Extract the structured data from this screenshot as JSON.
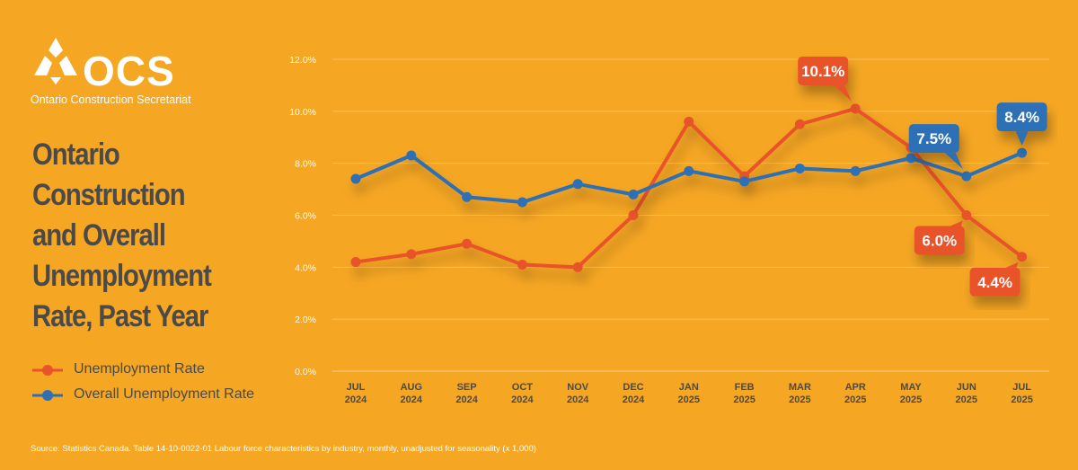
{
  "brand": {
    "logo_text": "OCS",
    "logo_subtitle": "Ontario Construction Secretariat"
  },
  "title_lines": [
    "Ontario",
    "Construction",
    "and Overall",
    "Unemployment",
    "Rate, Past Year"
  ],
  "source": "Source: Statistics Canada. Table 14-10-0022-01  Labour force characteristics by industry, monthly, unadjusted for seasonality (x 1,000)",
  "colors": {
    "background": "#F5A623",
    "construction": "#E9532B",
    "overall": "#2E6FB5",
    "title": "#4a4a4a",
    "grid": "#F8C060"
  },
  "chart_data": {
    "type": "line",
    "title": "Ontario Construction and Overall Unemployment Rate, Past Year",
    "xlabel": "",
    "ylabel": "",
    "ylim": [
      0,
      12
    ],
    "yticks": [
      "0.0%",
      "2.0%",
      "4.0%",
      "6.0%",
      "8.0%",
      "10.0%",
      "12.0%"
    ],
    "categories": [
      [
        "JUL",
        "2024"
      ],
      [
        "AUG",
        "2024"
      ],
      [
        "SEP",
        "2024"
      ],
      [
        "OCT",
        "2024"
      ],
      [
        "NOV",
        "2024"
      ],
      [
        "DEC",
        "2024"
      ],
      [
        "JAN",
        "2025"
      ],
      [
        "FEB",
        "2025"
      ],
      [
        "MAR",
        "2025"
      ],
      [
        "APR",
        "2025"
      ],
      [
        "MAY",
        "2025"
      ],
      [
        "JUN",
        "2025"
      ],
      [
        "JUL",
        "2025"
      ]
    ],
    "series": [
      {
        "name": "Unemployment Rate",
        "key": "construction",
        "values": [
          4.2,
          4.5,
          4.9,
          4.1,
          4.0,
          6.0,
          9.6,
          7.5,
          9.5,
          10.1,
          8.6,
          6.0,
          4.4
        ]
      },
      {
        "name": "Overall Unemployment Rate",
        "key": "overall",
        "values": [
          7.4,
          8.3,
          6.7,
          6.5,
          7.2,
          6.8,
          7.7,
          7.3,
          7.8,
          7.7,
          8.2,
          7.5,
          8.4
        ]
      }
    ],
    "annotations": [
      {
        "series": 0,
        "index": 9,
        "label": "10.1%",
        "placement": "above-left"
      },
      {
        "series": 0,
        "index": 11,
        "label": "6.0%",
        "placement": "below-left"
      },
      {
        "series": 0,
        "index": 12,
        "label": "4.4%",
        "placement": "below-left"
      },
      {
        "series": 1,
        "index": 11,
        "label": "7.5%",
        "placement": "above-left"
      },
      {
        "series": 1,
        "index": 12,
        "label": "8.4%",
        "placement": "above"
      }
    ],
    "legend_position": "bottom-left"
  }
}
